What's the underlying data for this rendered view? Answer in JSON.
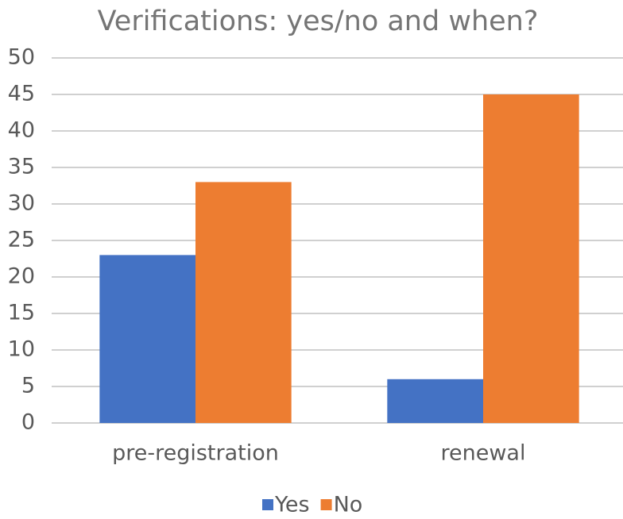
{
  "chart_data": {
    "type": "bar",
    "title": "Verifications: yes/no and when?",
    "categories": [
      "pre-registration",
      "renewal"
    ],
    "series": [
      {
        "name": "Yes",
        "color": "#4472c4",
        "values": [
          23,
          6
        ]
      },
      {
        "name": "No",
        "color": "#ed7d31",
        "values": [
          33,
          45
        ]
      }
    ],
    "ylim": [
      0,
      50
    ],
    "yticks": [
      0,
      5,
      10,
      15,
      20,
      25,
      30,
      35,
      40,
      45,
      50
    ],
    "grid": true,
    "legend": "bottom"
  }
}
